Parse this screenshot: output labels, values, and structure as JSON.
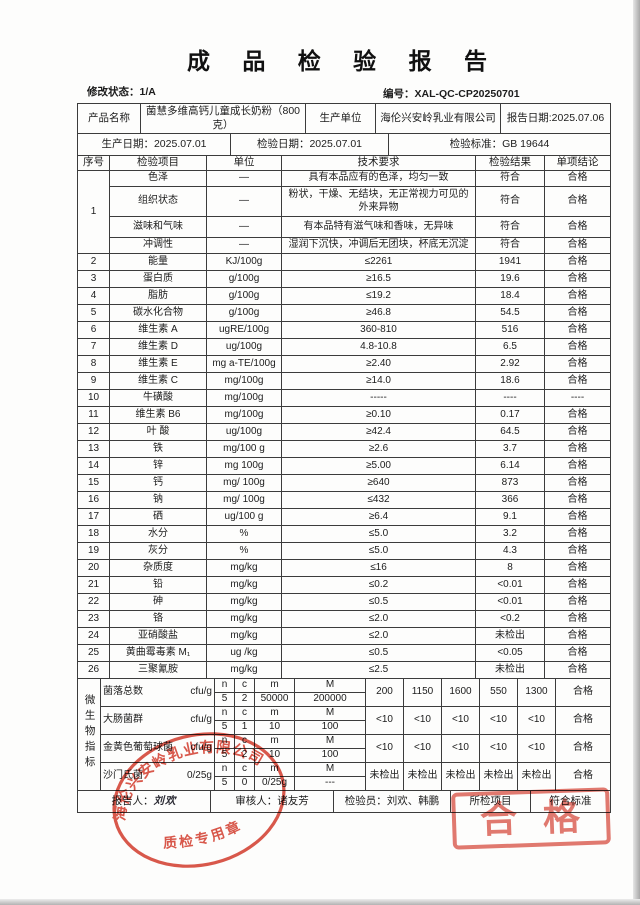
{
  "title": "成 品 检 验 报 告",
  "meta": {
    "revision_label": "修改状态：",
    "revision_value": "1/A",
    "doc_no_label": "编号：",
    "doc_no_value": "XAL-QC-CP20250701"
  },
  "info": {
    "product_name_label": "产品名称",
    "product_name": "菌慧多维高钙儿童成长奶粉（800克）",
    "producer_label": "生产单位",
    "producer": "海伦兴安岭乳业有限公司",
    "report_date_label": "报告日期:",
    "report_date": "2025.07.06",
    "production_date_label": "生产日期：",
    "production_date": "2025.07.01",
    "inspection_date_label": "检验日期：",
    "inspection_date": "2025.07.01",
    "standard_label": "检验标准：",
    "standard": "GB 19644"
  },
  "table": {
    "headers": [
      "序号",
      "检验项目",
      "单位",
      "技术要求",
      "检验结果",
      "单项结论"
    ],
    "sensory_no": "1",
    "sensory_rows": [
      {
        "item": "色泽",
        "unit": "—",
        "req": "具有本品应有的色泽，均匀一致",
        "result": "符合",
        "conclusion": "合格"
      },
      {
        "item": "组织状态",
        "unit": "—",
        "req": "粉状，干燥、无结块，无正常视力可见的外来异物",
        "result": "符合",
        "conclusion": "合格"
      },
      {
        "item": "滋味和气味",
        "unit": "—",
        "req": "有本品特有滋气味和香味，无异味",
        "result": "符合",
        "conclusion": "合格"
      },
      {
        "item": "冲调性",
        "unit": "—",
        "req": "湿润下沉快，冲调后无团块，杯底无沉淀",
        "result": "符合",
        "conclusion": "合格"
      }
    ],
    "rows": [
      {
        "no": "2",
        "item": "能量",
        "unit": "KJ/100g",
        "req": "≤2261",
        "result": "1941",
        "conclusion": "合格"
      },
      {
        "no": "3",
        "item": "蛋白质",
        "unit": "g/100g",
        "req": "≥16.5",
        "result": "19.6",
        "conclusion": "合格"
      },
      {
        "no": "4",
        "item": "脂肪",
        "unit": "g/100g",
        "req": "≤19.2",
        "result": "18.4",
        "conclusion": "合格"
      },
      {
        "no": "5",
        "item": "碳水化合物",
        "unit": "g/100g",
        "req": "≥46.8",
        "result": "54.5",
        "conclusion": "合格"
      },
      {
        "no": "6",
        "item": "维生素 A",
        "unit": "ugRE/100g",
        "req": "360-810",
        "result": "516",
        "conclusion": "合格"
      },
      {
        "no": "7",
        "item": "维生素 D",
        "unit": "ug/100g",
        "req": "4.8-10.8",
        "result": "6.5",
        "conclusion": "合格"
      },
      {
        "no": "8",
        "item": "维生素 E",
        "unit": "mg a-TE/100g",
        "req": "≥2.40",
        "result": "2.92",
        "conclusion": "合格"
      },
      {
        "no": "9",
        "item": "维生素 C",
        "unit": "mg/100g",
        "req": "≥14.0",
        "result": "18.6",
        "conclusion": "合格"
      },
      {
        "no": "10",
        "item": "牛磺酸",
        "unit": "mg/100g",
        "req": "-----",
        "result": "----",
        "conclusion": "----"
      },
      {
        "no": "11",
        "item": "维生素 B6",
        "unit": "mg/100g",
        "req": "≥0.10",
        "result": "0.17",
        "conclusion": "合格"
      },
      {
        "no": "12",
        "item": "叶 酸",
        "unit": "ug/100g",
        "req": "≥42.4",
        "result": "64.5",
        "conclusion": "合格"
      },
      {
        "no": "13",
        "item": "铁",
        "unit": "mg/100 g",
        "req": "≥2.6",
        "result": "3.7",
        "conclusion": "合格"
      },
      {
        "no": "14",
        "item": "锌",
        "unit": "mg 100g",
        "req": "≥5.00",
        "result": "6.14",
        "conclusion": "合格"
      },
      {
        "no": "15",
        "item": "钙",
        "unit": "mg/ 100g",
        "req": "≥640",
        "result": "873",
        "conclusion": "合格"
      },
      {
        "no": "16",
        "item": "钠",
        "unit": "mg/ 100g",
        "req": "≤432",
        "result": "366",
        "conclusion": "合格"
      },
      {
        "no": "17",
        "item": "硒",
        "unit": "ug/100 g",
        "req": "≥6.4",
        "result": "9.1",
        "conclusion": "合格"
      },
      {
        "no": "18",
        "item": "水分",
        "unit": "%",
        "req": "≤5.0",
        "result": "3.2",
        "conclusion": "合格"
      },
      {
        "no": "19",
        "item": "灰分",
        "unit": "%",
        "req": "≤5.0",
        "result": "4.3",
        "conclusion": "合格"
      },
      {
        "no": "20",
        "item": "杂质度",
        "unit": "mg/kg",
        "req": "≤16",
        "result": "8",
        "conclusion": "合格"
      },
      {
        "no": "21",
        "item": "铅",
        "unit": "mg/kg",
        "req": "≤0.2",
        "result": "<0.01",
        "conclusion": "合格"
      },
      {
        "no": "22",
        "item": "砷",
        "unit": "mg/kg",
        "req": "≤0.5",
        "result": "<0.01",
        "conclusion": "合格"
      },
      {
        "no": "23",
        "item": "铬",
        "unit": "mg/kg",
        "req": "≤2.0",
        "result": "<0.2",
        "conclusion": "合格"
      },
      {
        "no": "24",
        "item": "亚硝酸盐",
        "unit": "mg/kg",
        "req": "≤2.0",
        "result": "未检出",
        "conclusion": "合格"
      },
      {
        "no": "25",
        "item": "黄曲霉毒素 M₁",
        "unit": "ug /kg",
        "req": "≤0.5",
        "result": "<0.05",
        "conclusion": "合格"
      },
      {
        "no": "26",
        "item": "三聚氰胺",
        "unit": "mg/kg",
        "req": "≤2.5",
        "result": "未检出",
        "conclusion": "合格"
      }
    ]
  },
  "micro": {
    "section_label": "微生物指标",
    "ncmM": [
      "n",
      "c",
      "m",
      "M"
    ],
    "rows": [
      {
        "item": "菌落总数",
        "unit": "cfu/g",
        "plan": [
          "5",
          "2",
          "50000",
          "200000"
        ],
        "results": [
          "200",
          "1150",
          "1600",
          "550",
          "1300"
        ],
        "conclusion": "合格"
      },
      {
        "item": "大肠菌群",
        "unit": "cfu/g",
        "plan": [
          "5",
          "1",
          "10",
          "100"
        ],
        "results": [
          "<10",
          "<10",
          "<10",
          "<10",
          "<10"
        ],
        "conclusion": "合格"
      },
      {
        "item": "金黄色葡萄球菌",
        "unit": "cfu/g",
        "plan": [
          "5",
          "2",
          "10",
          "100"
        ],
        "results": [
          "<10",
          "<10",
          "<10",
          "<10",
          "<10"
        ],
        "conclusion": "合格"
      },
      {
        "item": "沙门氏菌",
        "unit": "0/25g",
        "plan": [
          "5",
          "0",
          "0/25g",
          "---"
        ],
        "results": [
          "未检出",
          "未检出",
          "未检出",
          "未检出",
          "未检出"
        ],
        "conclusion": "合格"
      }
    ]
  },
  "footer": {
    "reporter_label": "报告人：",
    "reporter": "刘欢",
    "reviewer_label": "审核人：",
    "reviewer": "诸友芳",
    "inspector_label": "检验员：",
    "inspectors": "刘欢、韩鹏",
    "items_label": "所检项目",
    "items_value": "符合标准"
  },
  "stamps": {
    "seal_company": "海伦兴安岭乳业有限公司",
    "seal_caption": "质检专用章",
    "pass_label": "合格",
    "stamp_color": "#d43b2c"
  }
}
